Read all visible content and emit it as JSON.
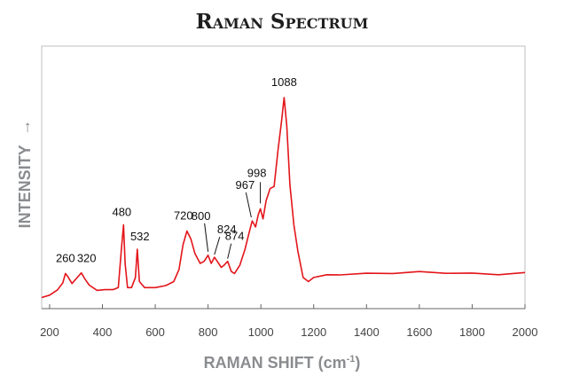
{
  "colors": {
    "series": "#e3151b",
    "plot_background": "#ffffff",
    "page_background": "#ffffff"
  },
  "chart_data": {
    "type": "line",
    "title": "Raman Spectrum",
    "xlabel": "RAMAN SHIFT (cm",
    "xlabel_superscript": "-1",
    "xlabel_suffix": ")",
    "ylabel": "INTENSITY",
    "ylabel_arrow": "→",
    "xlim": [
      170,
      2000
    ],
    "ylim": [
      0,
      100
    ],
    "xticks": [
      200,
      400,
      600,
      800,
      1000,
      1200,
      1400,
      1600,
      1800,
      2000
    ],
    "grid": false,
    "legend": "none",
    "series": [
      {
        "x": [
          170,
          200,
          230,
          250,
          260,
          270,
          285,
          300,
          320,
          335,
          350,
          380,
          410,
          440,
          460,
          472,
          480,
          486,
          495,
          510,
          525,
          532,
          540,
          560,
          600,
          640,
          670,
          690,
          705,
          720,
          735,
          750,
          770,
          785,
          800,
          812,
          824,
          835,
          850,
          860,
          874,
          888,
          900,
          920,
          940,
          955,
          967,
          980,
          990,
          998,
          1008,
          1020,
          1035,
          1050,
          1065,
          1078,
          1088,
          1098,
          1110,
          1125,
          1140,
          1160,
          1180,
          1200,
          1250,
          1300,
          1400,
          1500,
          1600,
          1700,
          1800,
          1900,
          2000
        ],
        "y": [
          1,
          2,
          5,
          8,
          13,
          11,
          8,
          10,
          13,
          10,
          7,
          5,
          5,
          5,
          6,
          25,
          37,
          18,
          6,
          6,
          11,
          25,
          9,
          6,
          6,
          7,
          9,
          15,
          27,
          34,
          30,
          23,
          18,
          19,
          22,
          18,
          21,
          19,
          16,
          17,
          19,
          14,
          13,
          17,
          25,
          33,
          39,
          36,
          42,
          45,
          40,
          49,
          55,
          56,
          74,
          88,
          100,
          86,
          57,
          37,
          24,
          11,
          9,
          11,
          12,
          12,
          13,
          13,
          14,
          13,
          13,
          12,
          13
        ]
      }
    ],
    "annotations": [
      {
        "text": "260",
        "x": 260,
        "y": 13
      },
      {
        "text": "320",
        "x": 320,
        "y": 13
      },
      {
        "text": "480",
        "x": 480,
        "y": 37
      },
      {
        "text": "532",
        "x": 532,
        "y": 25
      },
      {
        "text": "720",
        "x": 720,
        "y": 34
      },
      {
        "text": "800",
        "x": 800,
        "y": 22
      },
      {
        "text": "824",
        "x": 824,
        "y": 21
      },
      {
        "text": "874",
        "x": 874,
        "y": 19
      },
      {
        "text": "967",
        "x": 967,
        "y": 39
      },
      {
        "text": "998",
        "x": 998,
        "y": 45
      },
      {
        "text": "1088",
        "x": 1088,
        "y": 100
      }
    ]
  }
}
